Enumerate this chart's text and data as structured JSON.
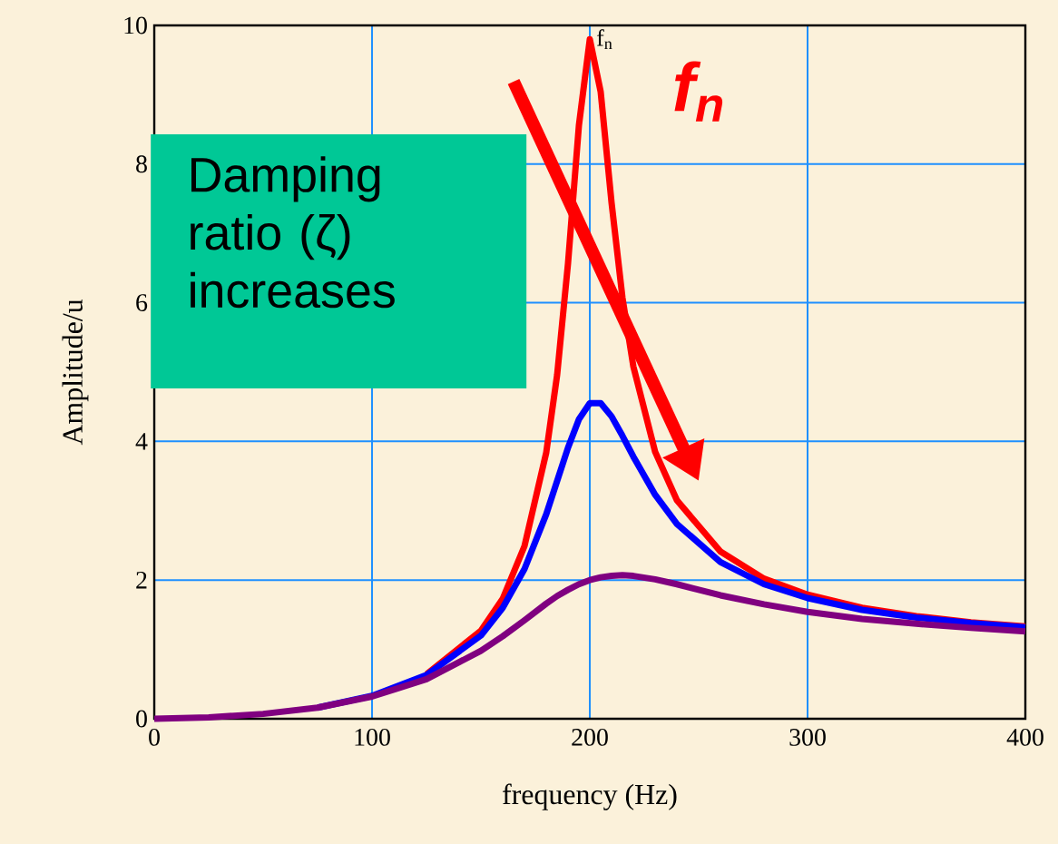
{
  "chart_data": {
    "type": "line",
    "xlabel": "frequency (Hz)",
    "ylabel": "Amplitude/u",
    "x": [
      0,
      25,
      50,
      75,
      100,
      125,
      150,
      160,
      170,
      180,
      185,
      190,
      195,
      200,
      205,
      210,
      215,
      220,
      230,
      240,
      260,
      280,
      300,
      325,
      350,
      375,
      400
    ],
    "series": [
      {
        "color": "#ff0000",
        "values": [
          null,
          null,
          null,
          null,
          null,
          0.64,
          1.27,
          1.73,
          2.49,
          3.84,
          4.96,
          6.57,
          8.56,
          9.8,
          9.04,
          7.44,
          6.07,
          5.08,
          3.85,
          3.15,
          2.41,
          2.02,
          1.79,
          1.6,
          1.48,
          1.39,
          1.33
        ]
      },
      {
        "color": "#0000ff",
        "values": [
          null,
          null,
          null,
          0.16,
          0.33,
          0.63,
          1.2,
          1.6,
          2.16,
          2.95,
          3.43,
          3.91,
          4.32,
          4.55,
          4.55,
          4.36,
          4.08,
          3.78,
          3.23,
          2.81,
          2.26,
          1.94,
          1.74,
          1.57,
          1.46,
          1.38,
          1.32
        ]
      },
      {
        "color": "#800080",
        "values": [
          0,
          0.02,
          0.07,
          0.16,
          0.32,
          0.57,
          0.98,
          1.19,
          1.42,
          1.66,
          1.77,
          1.86,
          1.94,
          2.0,
          2.04,
          2.06,
          2.07,
          2.06,
          2.01,
          1.94,
          1.78,
          1.65,
          1.54,
          1.44,
          1.37,
          1.31,
          1.26
        ]
      }
    ],
    "xlim": [
      0,
      400
    ],
    "ylim": [
      0,
      10
    ],
    "xticks": [
      0,
      100,
      200,
      300,
      400
    ],
    "yticks": [
      0,
      2,
      4,
      6,
      8,
      10
    ],
    "grid": true,
    "annotations": [
      "f$_{n}$",
      "Damping ratio (ζ) increases",
      "f$_{n}$"
    ]
  }
}
